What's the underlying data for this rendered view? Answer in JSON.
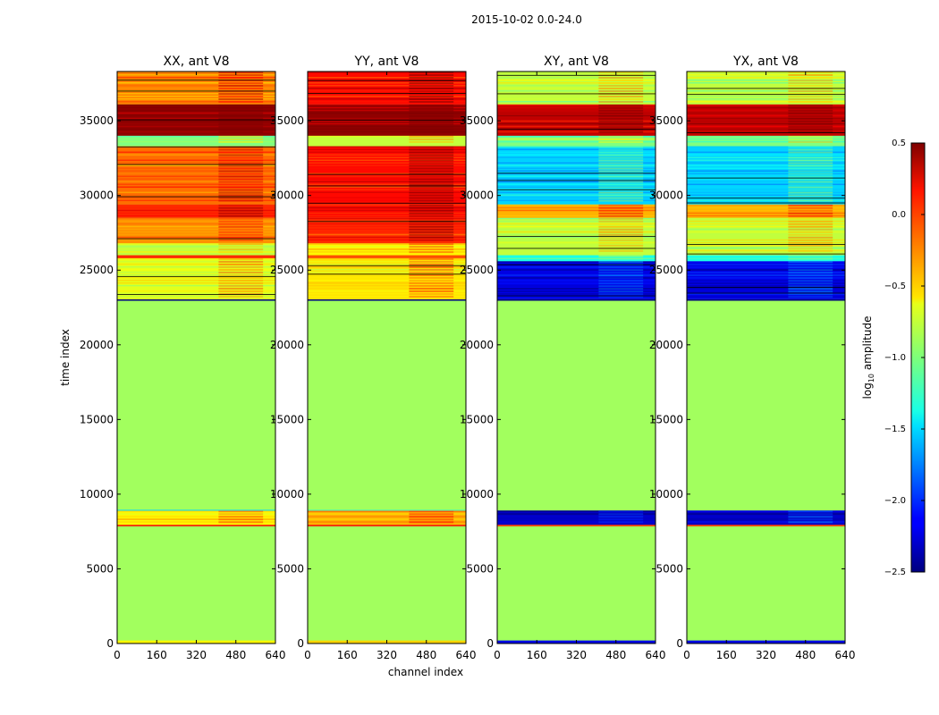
{
  "chart_data": {
    "type": "heatmap",
    "title": "2015-10-02 0.0-24.0",
    "xlabel": "channel index",
    "ylabel": "time index",
    "xlim": [
      0,
      640
    ],
    "ylim": [
      0,
      38300
    ],
    "xticks": [
      0,
      160,
      320,
      480,
      640
    ],
    "yticks": [
      0,
      5000,
      10000,
      15000,
      20000,
      25000,
      30000,
      35000
    ],
    "colorbar": {
      "label": "log10 amplitude",
      "label_main": "log",
      "label_sub": "10",
      "label_rest": " amplitude",
      "range": [
        -2.5,
        0.5
      ],
      "ticks": [
        0.5,
        0.0,
        -0.5,
        -1.0,
        -1.5,
        -2.0,
        -2.5
      ],
      "tick_labels": [
        "0.5",
        "0.0",
        "−0.5",
        "−1.0",
        "−1.5",
        "−2.0",
        "−2.5"
      ]
    },
    "panels": [
      {
        "title": "XX, ant V8",
        "background_value": -0.9,
        "bands": [
          {
            "t": [
              0,
              200
            ],
            "v": -0.6
          },
          {
            "t": [
              7850,
              7950
            ],
            "v": 0.1
          },
          {
            "t": [
              7950,
              8900
            ],
            "v": -0.6
          },
          {
            "t": [
              8900,
              8950
            ],
            "v": -1.5
          },
          {
            "t": [
              22950,
              23050
            ],
            "v": -2.5
          },
          {
            "t": [
              23050,
              25800
            ],
            "v": -0.7
          },
          {
            "t": [
              25800,
              26000
            ],
            "v": 0.0
          },
          {
            "t": [
              26000,
              26800
            ],
            "v": -0.8
          },
          {
            "t": [
              26800,
              28500
            ],
            "v": -0.3
          },
          {
            "t": [
              28500,
              29400
            ],
            "v": 0.0
          },
          {
            "t": [
              29400,
              33300
            ],
            "v": -0.2
          },
          {
            "t": [
              33300,
              34000
            ],
            "v": -1.0
          },
          {
            "t": [
              34000,
              36100
            ],
            "v": 0.45
          },
          {
            "t": [
              36100,
              38300
            ],
            "v": -0.25
          }
        ]
      },
      {
        "title": "YY, ant V8",
        "background_value": -0.9,
        "bands": [
          {
            "t": [
              0,
              200
            ],
            "v": -0.5
          },
          {
            "t": [
              7850,
              7950
            ],
            "v": 0.1
          },
          {
            "t": [
              7950,
              8900
            ],
            "v": -0.4
          },
          {
            "t": [
              8900,
              8950
            ],
            "v": -1.2
          },
          {
            "t": [
              22950,
              23050
            ],
            "v": -2.5
          },
          {
            "t": [
              23050,
              25800
            ],
            "v": -0.55
          },
          {
            "t": [
              25800,
              26000
            ],
            "v": -0.1
          },
          {
            "t": [
              26000,
              26800
            ],
            "v": -0.6
          },
          {
            "t": [
              26800,
              28500
            ],
            "v": 0.0
          },
          {
            "t": [
              28500,
              29400
            ],
            "v": 0.1
          },
          {
            "t": [
              29400,
              33300
            ],
            "v": 0.1
          },
          {
            "t": [
              33300,
              34000
            ],
            "v": -0.8
          },
          {
            "t": [
              34000,
              36100
            ],
            "v": 0.45
          },
          {
            "t": [
              36100,
              38300
            ],
            "v": 0.1
          }
        ]
      },
      {
        "title": "XY, ant V8",
        "background_value": -0.9,
        "bands": [
          {
            "t": [
              0,
              200
            ],
            "v": -2.2
          },
          {
            "t": [
              7850,
              7950
            ],
            "v": 0.0
          },
          {
            "t": [
              7950,
              8900
            ],
            "v": -2.3
          },
          {
            "t": [
              22950,
              23050
            ],
            "v": -2.5
          },
          {
            "t": [
              23050,
              25600
            ],
            "v": -2.2
          },
          {
            "t": [
              25600,
              26000
            ],
            "v": -1.3
          },
          {
            "t": [
              26000,
              28500
            ],
            "v": -0.8
          },
          {
            "t": [
              28500,
              29400
            ],
            "v": -0.4
          },
          {
            "t": [
              29400,
              33300
            ],
            "v": -1.5
          },
          {
            "t": [
              33300,
              34000
            ],
            "v": -1.0
          },
          {
            "t": [
              34000,
              36100
            ],
            "v": 0.3
          },
          {
            "t": [
              36100,
              38300
            ],
            "v": -0.8
          }
        ]
      },
      {
        "title": "YX, ant V8",
        "background_value": -0.9,
        "bands": [
          {
            "t": [
              0,
              200
            ],
            "v": -2.2
          },
          {
            "t": [
              7850,
              7950
            ],
            "v": 0.0
          },
          {
            "t": [
              7950,
              8900
            ],
            "v": -2.3
          },
          {
            "t": [
              22950,
              23050
            ],
            "v": -2.5
          },
          {
            "t": [
              23050,
              25600
            ],
            "v": -2.2
          },
          {
            "t": [
              25600,
              26000
            ],
            "v": -1.3
          },
          {
            "t": [
              26000,
              28500
            ],
            "v": -0.8
          },
          {
            "t": [
              28500,
              29400
            ],
            "v": -0.4
          },
          {
            "t": [
              29400,
              33300
            ],
            "v": -1.5
          },
          {
            "t": [
              33300,
              34000
            ],
            "v": -1.0
          },
          {
            "t": [
              34000,
              36100
            ],
            "v": 0.3
          },
          {
            "t": [
              36100,
              38300
            ],
            "v": -0.8
          }
        ]
      }
    ]
  }
}
